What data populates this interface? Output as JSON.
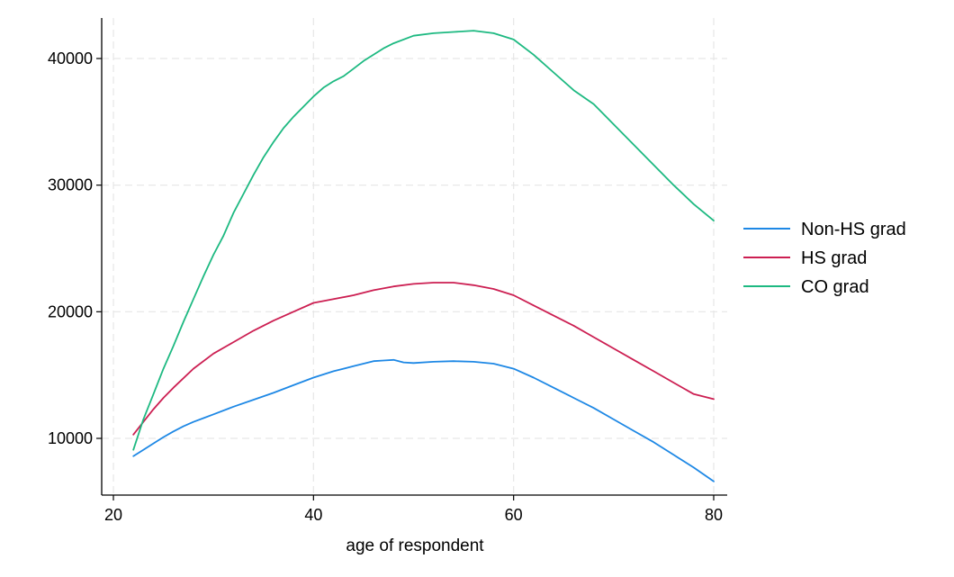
{
  "chart_data": {
    "type": "line",
    "title": "",
    "xlabel": "age of respondent",
    "ylabel": "",
    "xlim": [
      20,
      80
    ],
    "ylim": [
      7000,
      44000
    ],
    "xticks": [
      20,
      40,
      60,
      80
    ],
    "yticks": [
      10000,
      20000,
      30000,
      40000
    ],
    "grid": true,
    "legend_position": "right",
    "series": [
      {
        "name": "Non-HS grad",
        "color": "#1e88e5",
        "x": [
          22,
          23,
          24,
          25,
          26,
          27,
          28,
          29,
          30,
          32,
          34,
          36,
          38,
          40,
          42,
          44,
          46,
          47,
          48,
          49,
          50,
          52,
          54,
          56,
          58,
          60,
          62,
          64,
          66,
          68,
          70,
          72,
          74,
          76,
          78,
          80
        ],
        "y": [
          8600,
          9100,
          9600,
          10100,
          10550,
          10950,
          11300,
          11600,
          11900,
          12500,
          13050,
          13600,
          14200,
          14800,
          15300,
          15700,
          16100,
          16150,
          16200,
          16000,
          15950,
          16050,
          16100,
          16050,
          15900,
          15500,
          14800,
          14000,
          13200,
          12400,
          11500,
          10600,
          9700,
          8700,
          7700,
          6600
        ]
      },
      {
        "name": "HS grad",
        "color": "#cc1f52",
        "x": [
          22,
          23,
          24,
          25,
          26,
          28,
          30,
          32,
          34,
          36,
          38,
          40,
          42,
          44,
          46,
          48,
          50,
          52,
          54,
          56,
          58,
          60,
          62,
          64,
          66,
          68,
          70,
          72,
          74,
          76,
          78,
          80
        ],
        "y": [
          10300,
          11300,
          12300,
          13200,
          14000,
          15500,
          16700,
          17600,
          18500,
          19300,
          20000,
          20700,
          21000,
          21300,
          21700,
          22000,
          22200,
          22300,
          22300,
          22100,
          21800,
          21300,
          20500,
          19700,
          18900,
          18000,
          17100,
          16200,
          15300,
          14400,
          13500,
          13100
        ]
      },
      {
        "name": "CO grad",
        "color": "#1db981",
        "x": [
          22,
          23,
          24,
          25,
          26,
          27,
          28,
          29,
          30,
          31,
          32,
          33,
          34,
          35,
          36,
          37,
          38,
          39,
          40,
          41,
          42,
          43,
          44,
          45,
          46,
          47,
          48,
          50,
          52,
          54,
          56,
          58,
          60,
          62,
          64,
          66,
          68,
          70,
          72,
          74,
          76,
          78,
          80
        ],
        "y": [
          9100,
          11500,
          13500,
          15500,
          17300,
          19200,
          21000,
          22800,
          24500,
          26000,
          27800,
          29300,
          30800,
          32200,
          33400,
          34500,
          35400,
          36200,
          37000,
          37700,
          38200,
          38600,
          39200,
          39800,
          40300,
          40800,
          41200,
          41800,
          42000,
          42100,
          42200,
          42000,
          41500,
          40300,
          38900,
          37500,
          36400,
          34800,
          33200,
          31600,
          30000,
          28500,
          27200
        ]
      }
    ]
  }
}
